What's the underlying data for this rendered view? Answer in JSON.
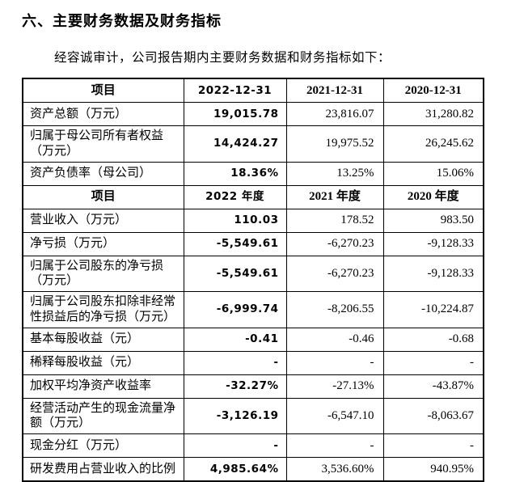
{
  "page": {
    "section_title": "六、主要财务数据及财务指标",
    "intro": "经容诚审计，公司报告期内主要财务数据和财务指标如下："
  },
  "table": {
    "columns": [
      "项目",
      "2022",
      "2021",
      "2020"
    ],
    "rows": [
      {
        "kind": "header",
        "cells": [
          "项目",
          "2022-12-31",
          "2021-12-31",
          "2020-12-31"
        ]
      },
      {
        "kind": "data",
        "cells": [
          "资产总额（万元）",
          "19,015.78",
          "23,816.07",
          "31,280.82"
        ]
      },
      {
        "kind": "data",
        "cells": [
          "归属于母公司所有者权益（万元）",
          "14,424.27",
          "19,975.52",
          "26,245.62"
        ]
      },
      {
        "kind": "data",
        "cells": [
          "资产负债率（母公司）",
          "18.36%",
          "13.25%",
          "15.06%"
        ]
      },
      {
        "kind": "header",
        "cells": [
          "项目",
          "2022 年度",
          "2021 年度",
          "2020 年度"
        ]
      },
      {
        "kind": "data",
        "cells": [
          "营业收入（万元）",
          "110.03",
          "178.52",
          "983.50"
        ]
      },
      {
        "kind": "data",
        "cells": [
          "净亏损（万元）",
          "-5,549.61",
          "-6,270.23",
          "-9,128.33"
        ]
      },
      {
        "kind": "data",
        "cells": [
          "归属于公司股东的净亏损（万元）",
          "-5,549.61",
          "-6,270.23",
          "-9,128.33"
        ]
      },
      {
        "kind": "data",
        "cells": [
          "归属于公司股东扣除非经常性损益后的净亏损（万元）",
          "-6,999.74",
          "-8,206.55",
          "-10,224.87"
        ]
      },
      {
        "kind": "data",
        "cells": [
          "基本每股收益（元）",
          "-0.41",
          "-0.46",
          "-0.68"
        ]
      },
      {
        "kind": "data",
        "cells": [
          "稀释每股收益（元）",
          "-",
          "-",
          "-"
        ]
      },
      {
        "kind": "data",
        "cells": [
          "加权平均净资产收益率",
          "-32.27%",
          "-27.13%",
          "-43.87%"
        ]
      },
      {
        "kind": "data",
        "cells": [
          "经营活动产生的现金流量净额（万元）",
          "-3,126.19",
          "-6,547.10",
          "-8,063.67"
        ]
      },
      {
        "kind": "data",
        "cells": [
          "现金分红（万元）",
          "-",
          "-",
          "-"
        ]
      },
      {
        "kind": "data",
        "cells": [
          "研发费用占营业收入的比例",
          "4,985.64%",
          "3,536.60%",
          "940.95%"
        ]
      }
    ]
  }
}
